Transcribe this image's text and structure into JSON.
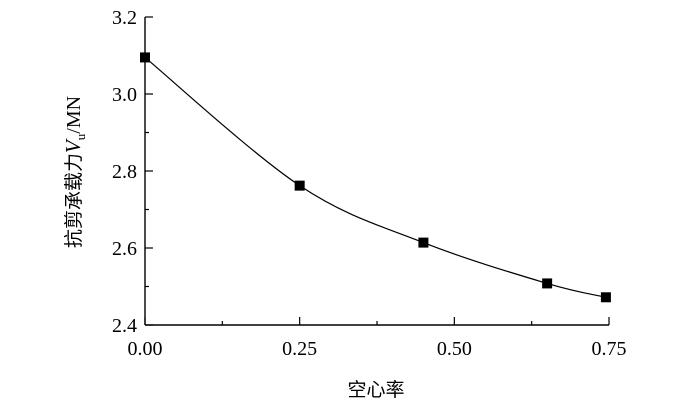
{
  "chart_data": {
    "type": "line",
    "title": "",
    "xlabel": "空心率",
    "ylabel": {
      "prefix": "抗剪承载力",
      "symbol": "V",
      "subscript": "u",
      "unit": "/MN"
    },
    "xlim": [
      0.0,
      0.75
    ],
    "ylim": [
      2.4,
      3.2
    ],
    "x_ticks": [
      "0.00",
      "0.25",
      "0.50",
      "0.75"
    ],
    "y_ticks": [
      "2.4",
      "2.6",
      "2.8",
      "3.0",
      "3.2"
    ],
    "grid": false,
    "legend": "none",
    "series": [
      {
        "x": [
          0.0,
          0.25,
          0.45,
          0.65,
          0.745
        ],
        "y": [
          3.095,
          2.762,
          2.614,
          2.508,
          2.472
        ]
      }
    ],
    "colors": {
      "line": "#000000",
      "marker": "#000000"
    }
  }
}
